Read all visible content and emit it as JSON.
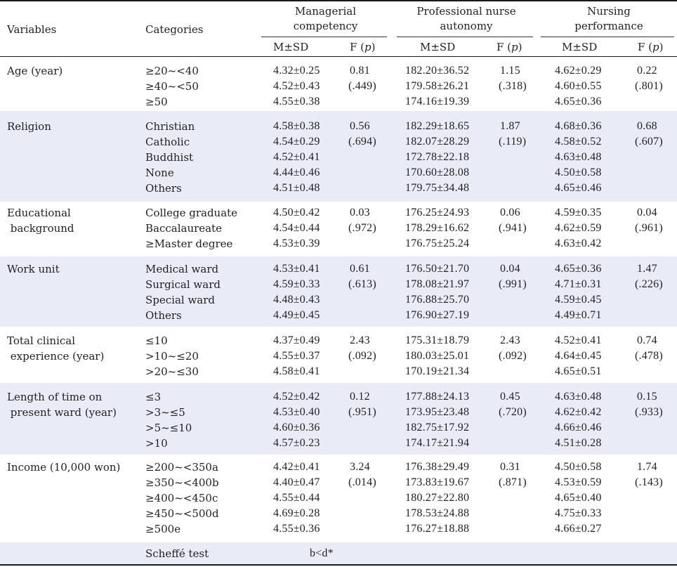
{
  "header": {
    "variables": "Variables",
    "categories": "Categories",
    "groups": [
      "Managerial\ncompetency",
      "Professional nurse\nautonomy",
      "Nursing\nperformance"
    ],
    "msd": "M±SD",
    "fp": "F (p)"
  },
  "rows": [
    {
      "variable": "Age (year)",
      "categories": [
        "≥20~<40",
        "≥40~<50",
        "≥50"
      ],
      "mc": [
        "4.32±0.25",
        "4.52±0.43",
        "4.55±0.38"
      ],
      "mc_f": "0.81",
      "mc_p": "(.449)",
      "pna": [
        "182.20±36.52",
        "179.58±26.21",
        "174.16±19.39"
      ],
      "pna_f": "1.15",
      "pna_p": "(.318)",
      "np": [
        "4.62±0.29",
        "4.60±0.55",
        "4.65±0.36"
      ],
      "np_f": "0.22",
      "np_p": "(.801)"
    },
    {
      "variable": "Religion",
      "categories": [
        "Christian",
        "Catholic",
        "Buddhist",
        "None",
        "Others"
      ],
      "mc": [
        "4.58±0.38",
        "4.54±0.29",
        "4.52±0.41",
        "4.44±0.46",
        "4.51±0.48"
      ],
      "mc_f": "0.56",
      "mc_p": "(.694)",
      "pna": [
        "182.29±18.65",
        "182.07±28.29",
        "172.78±22.18",
        "170.60±28.08",
        "179.75±34.48"
      ],
      "pna_f": "1.87",
      "pna_p": "(.119)",
      "np": [
        "4.68±0.36",
        "4.58±0.52",
        "4.63±0.48",
        "4.50±0.58",
        "4.65±0.46"
      ],
      "np_f": "0.68",
      "np_p": "(.607)"
    },
    {
      "variable": "Educational\n background",
      "categories": [
        "College graduate",
        "Baccalaureate",
        "≥Master degree"
      ],
      "mc": [
        "4.50±0.42",
        "4.54±0.44",
        "4.53±0.39"
      ],
      "mc_f": "0.03",
      "mc_p": "(.972)",
      "pna": [
        "176.25±24.93",
        "178.29±16.62",
        "176.75±25.24"
      ],
      "pna_f": "0.06",
      "pna_p": "(.941)",
      "np": [
        "4.59±0.35",
        "4.62±0.59",
        "4.63±0.42"
      ],
      "np_f": "0.04",
      "np_p": "(.961)"
    },
    {
      "variable": "Work unit",
      "categories": [
        "Medical ward",
        "Surgical ward",
        "Special ward",
        "Others"
      ],
      "mc": [
        "4.53±0.41",
        "4.59±0.33",
        "4.48±0.43",
        "4.49±0.45"
      ],
      "mc_f": "0.61",
      "mc_p": "(.613)",
      "pna": [
        "176.50±21.70",
        "178.08±21.97",
        "176.88±25.70",
        "176.90±27.19"
      ],
      "pna_f": "0.04",
      "pna_p": "(.991)",
      "np": [
        "4.65±0.36",
        "4.71±0.31",
        "4.59±0.45",
        "4.49±0.71"
      ],
      "np_f": "1.47",
      "np_p": "(.226)"
    },
    {
      "variable": "Total clinical\n experience (year)",
      "categories": [
        "≤10",
        ">10~≤20",
        ">20~≤30"
      ],
      "mc": [
        "4.37±0.49",
        "4.55±0.37",
        "4.58±0.41"
      ],
      "mc_f": "2.43",
      "mc_p": "(.092)",
      "pna": [
        "175.31±18.79",
        "180.03±25.01",
        "170.19±21.34"
      ],
      "pna_f": "2.43",
      "pna_p": "(.092)",
      "np": [
        "4.52±0.41",
        "4.64±0.45",
        "4.65±0.51"
      ],
      "np_f": "0.74",
      "np_p": "(.478)"
    },
    {
      "variable": "Length of time on\n present ward (year)",
      "categories": [
        "≤3",
        ">3~≤5",
        ">5~≤10",
        ">10"
      ],
      "mc": [
        "4.52±0.42",
        "4.53±0.40",
        "4.60±0.36",
        "4.57±0.23"
      ],
      "mc_f": "0.12",
      "mc_p": "(.951)",
      "pna": [
        "177.88±24.13",
        "173.95±23.48",
        "182.75±17.92",
        "174.17±21.94"
      ],
      "pna_f": "0.45",
      "pna_p": "(.720)",
      "np": [
        "4.63±0.48",
        "4.62±0.42",
        "4.66±0.46",
        "4.51±0.28"
      ],
      "np_f": "0.15",
      "np_p": "(.933)"
    },
    {
      "variable": "Income (10,000 won)",
      "categories": [
        "≥200~<350a",
        "≥350~<400b",
        "≥400~<450c",
        "≥450~<500d",
        "≥500e"
      ],
      "mc": [
        "4.42±0.41",
        "4.40±0.47",
        "4.55±0.44",
        "4.69±0.28",
        "4.55±0.36"
      ],
      "mc_f": "3.24",
      "mc_p": "(.014)",
      "pna": [
        "176.38±29.49",
        "173.83±19.67",
        "180.27±22.80",
        "178.53±24.88",
        "176.27±18.88"
      ],
      "pna_f": "0.31",
      "pna_p": "(.871)",
      "np": [
        "4.50±0.58",
        "4.53±0.59",
        "4.65±0.40",
        "4.75±0.33",
        "4.66±0.27"
      ],
      "np_f": "1.74",
      "np_p": "(.143)"
    }
  ],
  "footer": {
    "label": "Scheffé test",
    "value": "b<d*"
  }
}
